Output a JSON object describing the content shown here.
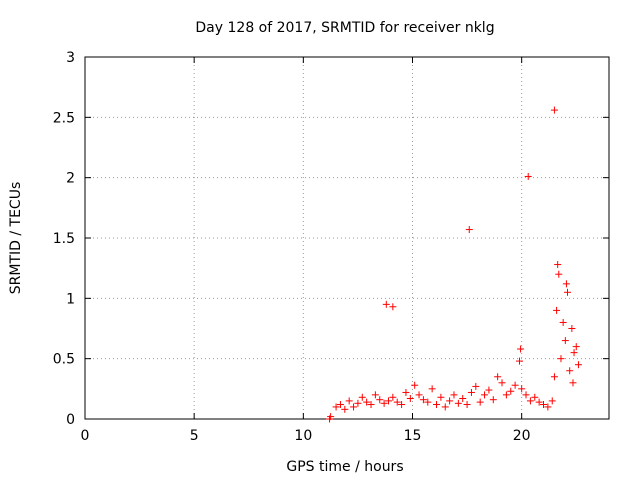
{
  "chart_data": {
    "type": "scatter",
    "title": "Day 128 of 2017, SRMTID for receiver nklg",
    "xlabel": "GPS time / hours",
    "ylabel": "SRMTID / TECUs",
    "xlim": [
      0,
      24
    ],
    "ylim": [
      0,
      3
    ],
    "xticks": [
      0,
      5,
      10,
      15,
      20
    ],
    "yticks": [
      0,
      0.5,
      1,
      1.5,
      2,
      2.5,
      3
    ],
    "ytick_labels": [
      "0",
      "0.5",
      "1",
      "1.5",
      "2",
      "2.5",
      "3"
    ],
    "grid": true,
    "marker": "+",
    "series": [
      {
        "name": "SRMTID",
        "color": "#ff0000",
        "x": [
          11.2,
          11.25,
          11.5,
          11.7,
          11.9,
          12.1,
          12.3,
          12.5,
          12.7,
          12.9,
          13.1,
          13.3,
          13.5,
          13.7,
          13.9,
          14.1,
          14.3,
          14.5,
          14.7,
          14.9,
          15.1,
          15.3,
          15.5,
          15.7,
          15.9,
          16.1,
          16.3,
          16.5,
          16.7,
          16.9,
          17.1,
          17.3,
          17.5,
          17.7,
          17.9,
          18.1,
          18.3,
          18.5,
          18.7,
          18.9,
          19.1,
          19.3,
          19.5,
          19.7,
          19.9,
          20.0,
          20.2,
          20.4,
          20.6,
          20.8,
          21.0,
          21.2,
          21.4,
          21.5,
          21.6,
          21.7,
          21.8,
          21.9,
          22.0,
          22.1,
          22.2,
          22.3,
          22.4,
          22.5,
          22.6,
          13.8,
          14.1,
          17.6,
          20.3,
          21.5,
          21.65,
          22.05,
          22.35,
          19.95
        ],
        "y": [
          0.0,
          0.02,
          0.1,
          0.12,
          0.08,
          0.15,
          0.1,
          0.13,
          0.18,
          0.14,
          0.12,
          0.2,
          0.16,
          0.13,
          0.15,
          0.18,
          0.14,
          0.12,
          0.22,
          0.17,
          0.28,
          0.2,
          0.16,
          0.14,
          0.25,
          0.12,
          0.18,
          0.1,
          0.15,
          0.2,
          0.13,
          0.17,
          0.12,
          0.22,
          0.27,
          0.14,
          0.2,
          0.24,
          0.16,
          0.35,
          0.3,
          0.2,
          0.23,
          0.28,
          0.48,
          0.25,
          0.2,
          0.15,
          0.18,
          0.14,
          0.12,
          0.1,
          0.15,
          0.35,
          0.9,
          1.2,
          0.5,
          0.8,
          0.65,
          1.05,
          0.4,
          0.75,
          0.55,
          0.6,
          0.45,
          0.95,
          0.93,
          1.57,
          2.01,
          2.56,
          1.28,
          1.12,
          0.3,
          0.58
        ]
      }
    ]
  }
}
